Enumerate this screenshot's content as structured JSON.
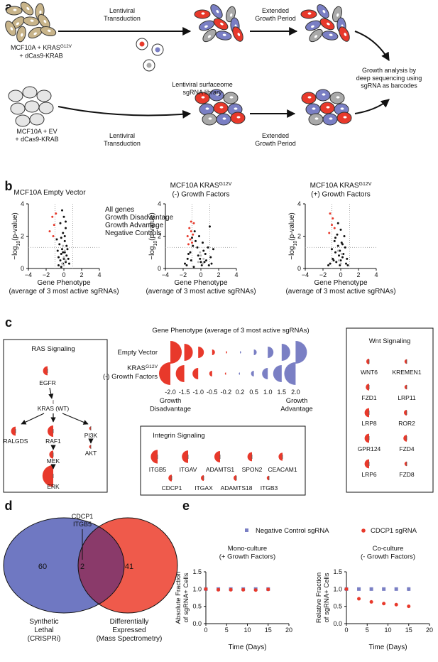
{
  "panel_a": {
    "label": "a",
    "cells_kras": {
      "text": "MCF10A + KRAS",
      "sup": "G12V",
      "line2": "+ dCas9-KRAB"
    },
    "cells_ev": [
      "MCF10A + EV",
      "+ dCas9-KRAB"
    ],
    "transduction": [
      "Lentiviral",
      "Transduction"
    ],
    "growth": [
      "Extended",
      "Growth Period"
    ],
    "library": [
      "Lentiviral surfaceome",
      "sgRNA library"
    ],
    "analysis": [
      "Growth analysis by",
      "deep sequencing using",
      "sgRNA as barcodes"
    ]
  },
  "panel_b": {
    "label": "b",
    "x_label": [
      "Gene Phenotype",
      "(average of 3 most active sgRNAs)"
    ],
    "y_label": {
      "pre": "−log",
      "sub": "10",
      "post": "(p-value)"
    },
    "xlim": [
      -4,
      4
    ],
    "ylim": [
      0,
      4
    ],
    "xticks": [
      {
        "value": -4,
        "label": "−4"
      },
      {
        "value": -2,
        "label": "−2"
      },
      0,
      2,
      4
    ],
    "yticks": [
      0,
      2,
      4
    ],
    "threshold_x": [
      -1,
      1
    ],
    "threshold_y": 1.3,
    "legend": [
      {
        "name": "All genes",
        "color": "#111111"
      },
      {
        "name": "Growth Disadvantage",
        "color": "#e8392b"
      },
      {
        "name": "Growth Advantage",
        "color": "#7a7fc4"
      },
      {
        "name": "Negative Controls",
        "color": "#b8b8b8"
      }
    ],
    "plots": [
      {
        "title": {
          "text": "MCF10A Empty Vector"
        },
        "series": [
          {
            "x": [
              -0.6,
              -0.4,
              -0.3,
              -0.2,
              -0.1,
              0,
              0.1,
              0.2,
              0.3,
              -0.5,
              -0.3,
              -0.1,
              0.1,
              0.2,
              -0.7,
              -0.4,
              0,
              0.3,
              0.5,
              -0.2,
              -0.6,
              0.1,
              0.4,
              -0.3,
              0.6,
              -0.8,
              0.2,
              -0.1
            ],
            "y": [
              0.2,
              0.5,
              0.9,
              1.2,
              0.3,
              0.6,
              1.0,
              0.4,
              0.8,
              1.5,
              1.9,
              2.2,
              1.7,
              2.5,
              1.1,
              2.8,
              3.2,
              1.4,
              0.6,
              3.6,
              0.7,
              2.0,
              1.2,
              0.1,
              0.3,
              1.8,
              2.9,
              1.0
            ]
          },
          {
            "x": [
              -1.3,
              -1.1,
              -1.6,
              -0.9,
              -1.2
            ],
            "y": [
              3.2,
              2.7,
              2.3,
              3.4,
              2.0
            ]
          },
          {
            "x": [],
            "y": []
          },
          {
            "x": [
              -0.2,
              0,
              0.1,
              -0.1,
              0.2,
              0
            ],
            "y": [
              0.3,
              0.7,
              1.1,
              1.4,
              0.5,
              0.2
            ]
          }
        ]
      },
      {
        "title": {
          "text": "MCF10A KRAS",
          "sup": "G12V",
          "line2": "(-) Growth Factors"
        },
        "series": [
          {
            "x": [
              -1.8,
              -1.5,
              -1.2,
              -0.9,
              -0.6,
              -0.3,
              0,
              0.3,
              0.6,
              0.9,
              1.2,
              -1.4,
              -1,
              -0.7,
              -0.4,
              -0.1,
              0.2,
              0.5,
              0.8,
              1.1,
              -1.6,
              -0.8,
              -0.2,
              0.4,
              1,
              1.4,
              -1.1,
              0.1
            ],
            "y": [
              0.3,
              0.6,
              1.0,
              1.4,
              1.7,
              0.8,
              0.4,
              1.1,
              0.5,
              0.2,
              0.3,
              0.9,
              1.9,
              2.3,
              1.3,
              0.6,
              1.6,
              0.9,
              1.3,
              0.7,
              0.2,
              0.1,
              2.0,
              0.4,
              2.6,
              1.2,
              0.5,
              0.2
            ]
          },
          {
            "x": [
              -1.3,
              -1.1,
              -1.5,
              -0.9,
              -1.2,
              -1.0,
              -1.4,
              -0.8,
              -1.1
            ],
            "y": [
              2.5,
              2.3,
              2.0,
              2.1,
              1.8,
              1.6,
              1.5,
              2.8,
              2.9
            ]
          },
          {
            "x": [],
            "y": []
          },
          {
            "x": [
              -0.3,
              0,
              0.2,
              -0.1,
              0.3
            ],
            "y": [
              0.4,
              0.8,
              0.3,
              1.0,
              0.6
            ]
          }
        ]
      },
      {
        "title": {
          "text": "MCF10A KRAS",
          "sup": "G12V",
          "line2": "(+) Growth Factors"
        },
        "series": [
          {
            "x": [
              -1.2,
              -0.9,
              -0.6,
              -0.3,
              0,
              0.3,
              0.6,
              -1,
              -0.7,
              -0.4,
              -0.1,
              0.2,
              0.5,
              0.8,
              -0.5,
              -0.2,
              0.1,
              -0.8,
              0.4,
              -1.4,
              0,
              -0.3,
              0.7,
              -0.6,
              0.2,
              -0.1
            ],
            "y": [
              0.3,
              0.6,
              1.0,
              1.4,
              0.5,
              0.9,
              0.3,
              1.2,
              1.7,
              2.1,
              1.1,
              0.7,
              1.3,
              0.2,
              0.4,
              0.8,
              1.6,
              0.5,
              2.0,
              0.2,
              2.4,
              2.8,
              0.6,
              1.9,
              1.5,
              0.2
            ]
          },
          {
            "x": [
              -1.2,
              -0.9,
              -1.0,
              -0.7,
              -1.3
            ],
            "y": [
              3.4,
              3.1,
              2.7,
              2.5,
              2.2
            ]
          },
          {
            "x": [],
            "y": []
          },
          {
            "x": [
              -0.2,
              0.1,
              0,
              -0.3
            ],
            "y": [
              0.5,
              0.9,
              0.3,
              1.1
            ]
          }
        ]
      }
    ]
  },
  "panel_c": {
    "label": "c",
    "scale_title": "Gene Phenotype (average of 3 most active sgRNAs)",
    "row1": "Empty Vector",
    "row2": {
      "text": "KRAS",
      "sup": "G12V",
      "line2": "(-) Growth Factors"
    },
    "scale": [
      {
        "value": -2,
        "label": "-2.0"
      },
      -1.5,
      {
        "value": -1,
        "label": "-1.0"
      },
      -0.5,
      -0.2,
      0.2,
      0.5,
      {
        "value": 1,
        "label": "1.0"
      },
      1.5,
      {
        "value": 2,
        "label": "2.0"
      }
    ],
    "left_end": [
      "Growth",
      "Disadvantage"
    ],
    "right_end": [
      "Growth",
      "Advantage"
    ],
    "ras": {
      "title": "RAS Signaling",
      "genes": [
        {
          "name": "EGFR",
          "phenotype": -0.8
        },
        {
          "name": "KRAS (WT)",
          "phenotype": -0.1
        },
        {
          "name": "RALGDS",
          "phenotype": -0.8
        },
        {
          "name": "RAF1",
          "phenotype": -1.0
        },
        {
          "name": "PI3K",
          "phenotype": -0.3
        },
        {
          "name": "MEK",
          "phenotype": -0.7
        },
        {
          "name": "AKT",
          "phenotype": -0.3
        },
        {
          "name": "ERK",
          "phenotype": -1.9
        }
      ]
    },
    "integrin": {
      "title": "Integrin Signaling",
      "genes": [
        {
          "name": "ITGB5",
          "phenotype": -1.2
        },
        {
          "name": "ITGAV",
          "phenotype": -1.1
        },
        {
          "name": "ADAMTS1",
          "phenotype": -1.0
        },
        {
          "name": "SPON2",
          "phenotype": -0.8
        },
        {
          "name": "CEACAM1",
          "phenotype": -0.7
        },
        {
          "name": "CDCP1",
          "phenotype": -0.6
        },
        {
          "name": "ITGAX",
          "phenotype": -0.5
        },
        {
          "name": "ADAMTS18",
          "phenotype": -0.5
        },
        {
          "name": "ITGB3",
          "phenotype": -0.4
        }
      ]
    },
    "wnt": {
      "title": "Wnt Signaling",
      "genes": [
        {
          "name": "WNT6",
          "phenotype": -0.5
        },
        {
          "name": "KREMEN1",
          "phenotype": -0.4
        },
        {
          "name": "FZD1",
          "phenotype": -0.6
        },
        {
          "name": "LRP11",
          "phenotype": -0.4
        },
        {
          "name": "LRP8",
          "phenotype": -0.8
        },
        {
          "name": "ROR2",
          "phenotype": -0.5
        },
        {
          "name": "GPR124",
          "phenotype": -0.8
        },
        {
          "name": "FZD4",
          "phenotype": -0.6
        },
        {
          "name": "LRP6",
          "phenotype": -0.8
        },
        {
          "name": "FZD8",
          "phenotype": -0.4
        }
      ]
    }
  },
  "panel_d": {
    "label": "d",
    "left_count": 60,
    "overlap": 2,
    "right_count": 41,
    "overlap_genes": [
      "CDCP1",
      "ITGB5"
    ],
    "left_label": [
      "Synthetic",
      "Lethal",
      "(CRISPRi)"
    ],
    "right_label": [
      "Differentially",
      "Expressed",
      "(Mass Spectrometry)"
    ]
  },
  "panel_e": {
    "label": "e",
    "legend": [
      {
        "name": "Negative Control sgRNA",
        "color": "#7a7fc4"
      },
      {
        "name": "CDCP1 sgRNA",
        "color": "#e8392b"
      }
    ],
    "x_label": "Time (Days)",
    "xlim": [
      0,
      20
    ],
    "xticks": [
      0,
      5,
      10,
      15,
      20
    ],
    "ylim": [
      0,
      1.5
    ],
    "yticks": [
      {
        "value": 0,
        "label": "0.0"
      },
      0.5,
      {
        "value": 1,
        "label": "1.0"
      },
      1.5
    ],
    "x": [
      0,
      3,
      6,
      9,
      12,
      15
    ],
    "plots": [
      {
        "title": [
          "Mono-culture",
          "(+ Growth Factors)"
        ],
        "y_label": [
          "Absolute Fraction",
          "of sgRNA+ Cells"
        ],
        "series": [
          {
            "y": [
              1.0,
              1.0,
              1.0,
              1.0,
              1.0,
              1.0
            ],
            "err": [
              0,
              0,
              0,
              0,
              0,
              0
            ]
          },
          {
            "y": [
              1.0,
              0.98,
              0.98,
              0.98,
              0.97,
              0.99
            ],
            "err": [
              0,
              0,
              0,
              0,
              0,
              0
            ]
          }
        ]
      },
      {
        "title": [
          "Co-culture",
          "(- Growth Factors)"
        ],
        "y_label": [
          "Relative Fraction",
          "of sgRNA+ Cells"
        ],
        "series": [
          {
            "y": [
              1.0,
              1.0,
              1.0,
              1.0,
              1.0,
              1.0
            ],
            "err": [
              0,
              0,
              0.03,
              0,
              0,
              0.05
            ]
          },
          {
            "y": [
              1.0,
              0.72,
              0.63,
              0.58,
              0.55,
              0.5
            ],
            "err": [
              0,
              0,
              0,
              0,
              0.03,
              0
            ]
          }
        ]
      }
    ]
  }
}
